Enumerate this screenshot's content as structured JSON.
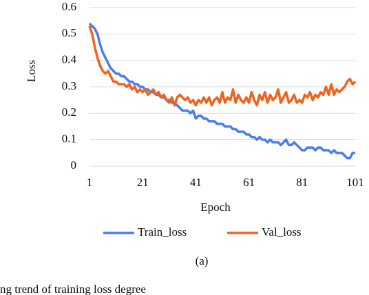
{
  "chart_data": {
    "type": "line",
    "y_label": "Loss",
    "x_label": "Epoch",
    "panel_label": "(a)",
    "caption": "ng trend of training loss degree",
    "x": [
      1,
      2,
      3,
      4,
      5,
      6,
      7,
      8,
      9,
      10,
      11,
      12,
      13,
      14,
      15,
      16,
      17,
      18,
      19,
      20,
      21,
      22,
      23,
      24,
      25,
      26,
      27,
      28,
      29,
      30,
      31,
      32,
      33,
      34,
      35,
      36,
      37,
      38,
      39,
      40,
      41,
      42,
      43,
      44,
      45,
      46,
      47,
      48,
      49,
      50,
      51,
      52,
      53,
      54,
      55,
      56,
      57,
      58,
      59,
      60,
      61,
      62,
      63,
      64,
      65,
      66,
      67,
      68,
      69,
      70,
      71,
      72,
      73,
      74,
      75,
      76,
      77,
      78,
      79,
      80,
      81,
      82,
      83,
      84,
      85,
      86,
      87,
      88,
      89,
      90,
      91,
      92,
      93,
      94,
      95,
      96,
      97,
      98,
      99,
      100,
      101
    ],
    "series": [
      {
        "name": "Train_loss",
        "color": "#4a7cf0",
        "values": [
          0.54,
          0.53,
          0.52,
          0.5,
          0.46,
          0.43,
          0.41,
          0.39,
          0.37,
          0.36,
          0.35,
          0.35,
          0.34,
          0.34,
          0.33,
          0.32,
          0.32,
          0.31,
          0.31,
          0.3,
          0.3,
          0.29,
          0.29,
          0.28,
          0.28,
          0.27,
          0.27,
          0.26,
          0.26,
          0.25,
          0.25,
          0.24,
          0.24,
          0.23,
          0.22,
          0.21,
          0.21,
          0.21,
          0.2,
          0.21,
          0.18,
          0.19,
          0.19,
          0.18,
          0.18,
          0.17,
          0.17,
          0.17,
          0.16,
          0.16,
          0.16,
          0.15,
          0.15,
          0.15,
          0.14,
          0.14,
          0.13,
          0.13,
          0.13,
          0.12,
          0.12,
          0.11,
          0.11,
          0.1,
          0.11,
          0.1,
          0.1,
          0.09,
          0.1,
          0.09,
          0.09,
          0.09,
          0.08,
          0.09,
          0.1,
          0.08,
          0.08,
          0.09,
          0.08,
          0.07,
          0.06,
          0.06,
          0.07,
          0.07,
          0.07,
          0.06,
          0.07,
          0.07,
          0.06,
          0.06,
          0.06,
          0.05,
          0.06,
          0.05,
          0.05,
          0.05,
          0.04,
          0.03,
          0.03,
          0.05,
          0.05
        ]
      },
      {
        "name": "Val_loss",
        "color": "#f0621e",
        "values": [
          0.53,
          0.5,
          0.45,
          0.41,
          0.38,
          0.36,
          0.35,
          0.36,
          0.34,
          0.32,
          0.32,
          0.31,
          0.31,
          0.31,
          0.3,
          0.31,
          0.29,
          0.3,
          0.28,
          0.29,
          0.28,
          0.29,
          0.27,
          0.28,
          0.29,
          0.27,
          0.28,
          0.26,
          0.27,
          0.25,
          0.24,
          0.26,
          0.23,
          0.26,
          0.27,
          0.26,
          0.25,
          0.26,
          0.24,
          0.25,
          0.23,
          0.25,
          0.24,
          0.26,
          0.24,
          0.26,
          0.23,
          0.25,
          0.26,
          0.24,
          0.28,
          0.24,
          0.26,
          0.25,
          0.29,
          0.24,
          0.27,
          0.25,
          0.24,
          0.26,
          0.24,
          0.28,
          0.25,
          0.23,
          0.27,
          0.25,
          0.28,
          0.24,
          0.27,
          0.25,
          0.26,
          0.29,
          0.24,
          0.26,
          0.28,
          0.24,
          0.25,
          0.27,
          0.24,
          0.25,
          0.24,
          0.27,
          0.26,
          0.28,
          0.25,
          0.27,
          0.26,
          0.28,
          0.27,
          0.3,
          0.27,
          0.31,
          0.27,
          0.29,
          0.28,
          0.29,
          0.3,
          0.32,
          0.33,
          0.31,
          0.32
        ]
      }
    ],
    "xlim": [
      1,
      101
    ],
    "xticks": [
      1,
      21,
      41,
      61,
      81,
      101
    ],
    "ylim": [
      0,
      0.6
    ],
    "yticks": [
      0,
      0.1,
      0.2,
      0.3,
      0.4,
      0.5,
      0.6
    ],
    "grid": true,
    "legend": "bottom"
  }
}
